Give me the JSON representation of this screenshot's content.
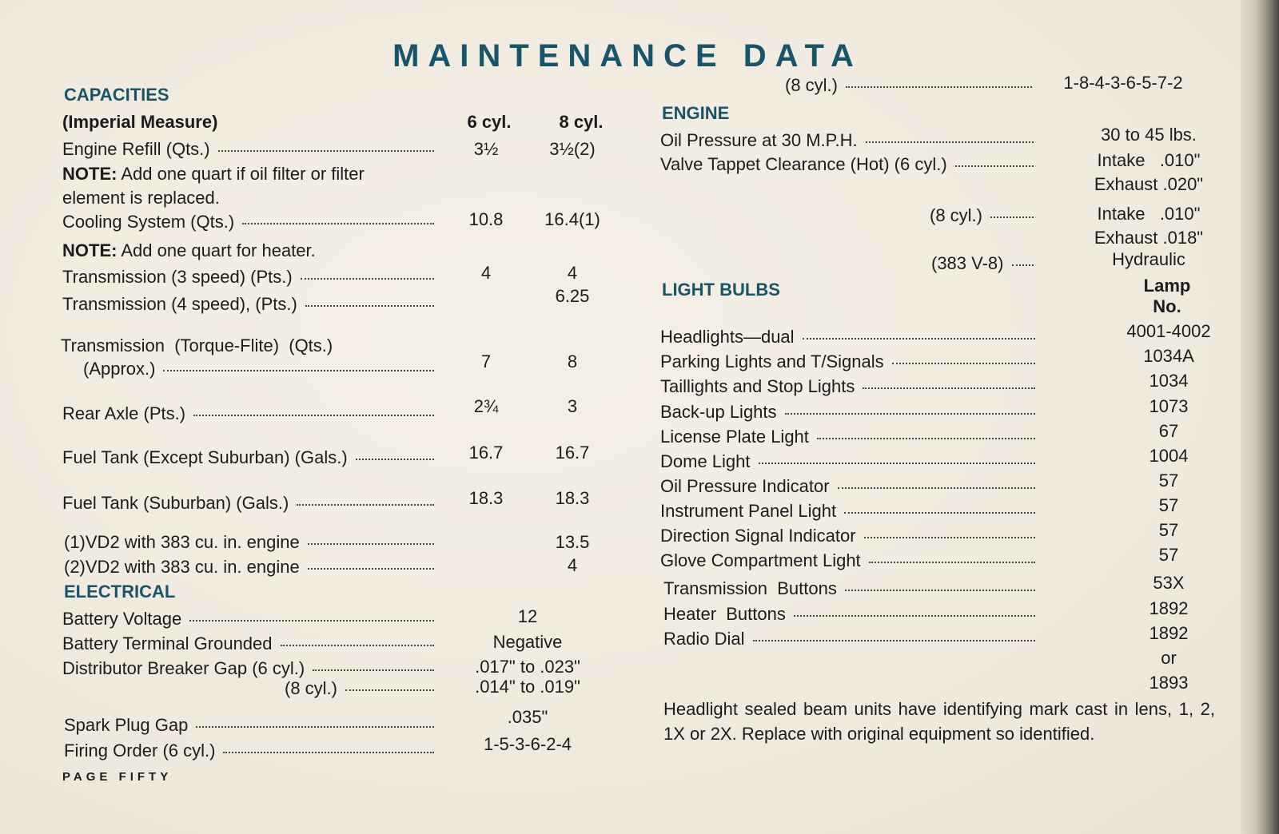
{
  "title": "MAINTENANCE DATA",
  "footer": "PAGE FIFTY",
  "left": {
    "capacities_heading": "CAPACITIES",
    "measure_label": "(Imperial Measure)",
    "col6": "6 cyl.",
    "col8": "8 cyl.",
    "electrical_heading": "ELECTRICAL",
    "rows": [
      {
        "label": "Engine Refill (Qts.)",
        "dots": true,
        "v6": "3½",
        "v8": "3½(2)"
      },
      {
        "label_bold": "NOTE:",
        "label": " Add one quart if oil filter or filter",
        "dots": false
      },
      {
        "label": "element is replaced.",
        "dots": false
      },
      {
        "label": "Cooling System (Qts.)",
        "dots": true,
        "v6": "10.8",
        "v8": "16.4(1)"
      },
      {
        "label_bold": "NOTE:",
        "label": " Add one quart for heater.",
        "dots": false
      },
      {
        "label": "Transmission (3 speed) (Pts.)",
        "dots": true,
        "v6": "4",
        "v8": "4"
      },
      {
        "label": "Transmission (4 speed), (Pts.)",
        "dots": true,
        "v8": "6.25"
      },
      {
        "label": "Transmission  (Torque-Flite)  (Qts.)",
        "dots": false
      },
      {
        "label": "(Approx.)",
        "dots": true,
        "v6": "7",
        "v8": "8"
      },
      {
        "label": "Rear Axle (Pts.)",
        "dots": true,
        "v6": "2¾",
        "v8": "3"
      },
      {
        "label": "Fuel Tank (Except Suburban) (Gals.)",
        "dots": true,
        "v6": "16.7",
        "v8": "16.7"
      },
      {
        "label": "Fuel Tank (Suburban) (Gals.)",
        "dots": true,
        "v6": "18.3",
        "v8": "18.3"
      },
      {
        "label": "(1)VD2 with 383 cu. in. engine",
        "dots": true,
        "v8": "13.5"
      },
      {
        "label": "(2)VD2 with 383 cu. in. engine",
        "dots": true,
        "v8": "4"
      }
    ],
    "electrical_rows": [
      {
        "label": "Battery Voltage",
        "dots": true,
        "value": "12"
      },
      {
        "label": "Battery Terminal Grounded",
        "dots": true,
        "value": "Negative"
      },
      {
        "label": "Distributor Breaker Gap (6 cyl.)",
        "dots": true,
        "value": ".017\" to .023\""
      },
      {
        "label": "(8 cyl.)",
        "dots": true,
        "value": ".014\" to .019\""
      },
      {
        "label": "Spark Plug Gap",
        "dots": true,
        "value": ".035\""
      },
      {
        "label": "Firing Order (6 cyl.)",
        "dots": true,
        "value": "1-5-3-6-2-4"
      }
    ]
  },
  "right": {
    "firing_8cyl": {
      "label": "(8 cyl.)",
      "value": "1-8-4-3-6-5-7-2"
    },
    "engine_heading": "ENGINE",
    "engine_rows": [
      {
        "label": "Oil Pressure at 30 M.P.H.",
        "values": [
          "30 to 45 lbs."
        ]
      },
      {
        "label": "Valve Tappet Clearance (Hot) (6 cyl.)",
        "values": [
          "Intake   .010\"",
          "Exhaust .020\""
        ]
      },
      {
        "label": "(8 cyl.)",
        "values": [
          "Intake   .010\"",
          "Exhaust .018\""
        ]
      },
      {
        "label": "(383 V-8)",
        "values": [
          "Hydraulic"
        ]
      }
    ],
    "bulbs_heading": "LIGHT  BULBS",
    "lamp_header": [
      "Lamp",
      "No."
    ],
    "bulbs": [
      {
        "label": "Headlights—dual",
        "values": [
          "4001-4002"
        ]
      },
      {
        "label": "Parking Lights and T/Signals",
        "values": [
          "1034A"
        ]
      },
      {
        "label": "Taillights and Stop Lights",
        "values": [
          "1034"
        ]
      },
      {
        "label": "Back-up Lights",
        "values": [
          "1073"
        ]
      },
      {
        "label": "License Plate Light",
        "values": [
          "67"
        ]
      },
      {
        "label": "Dome Light",
        "values": [
          "1004"
        ]
      },
      {
        "label": "Oil Pressure Indicator",
        "values": [
          "57"
        ]
      },
      {
        "label": "Instrument Panel Light",
        "values": [
          "57"
        ]
      },
      {
        "label": "Direction Signal Indicator",
        "values": [
          "57"
        ]
      },
      {
        "label": "Glove Compartment Light",
        "values": [
          "57"
        ]
      },
      {
        "label": "Transmission  Buttons",
        "values": [
          "53X"
        ]
      },
      {
        "label": "Heater  Buttons",
        "values": [
          "1892"
        ]
      },
      {
        "label": "Radio Dial",
        "values": [
          "1892",
          "or",
          "1893"
        ]
      }
    ],
    "note": "Headlight sealed beam units have identifying mark cast in lens, 1, 2, 1X or 2X. Replace with original equipment so identified."
  },
  "colors": {
    "heading": "#17566a",
    "paper": "#f2ece2",
    "text": "#1c1c1c"
  }
}
